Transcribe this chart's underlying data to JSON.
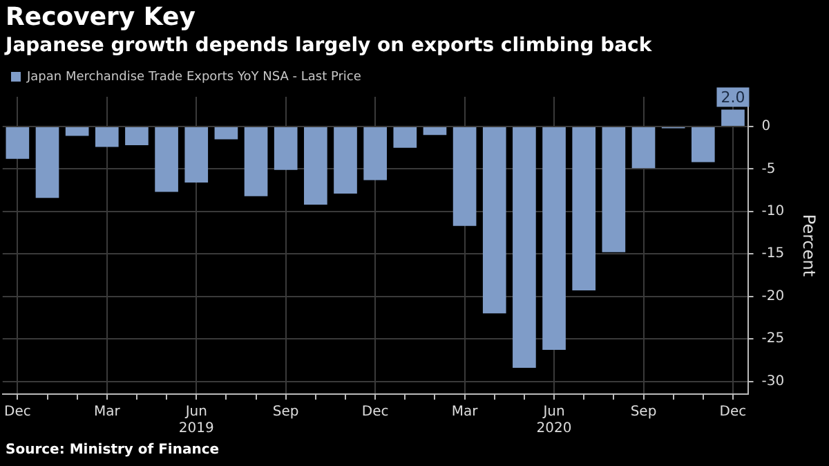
{
  "chart_data": {
    "type": "bar",
    "title": "Recovery Key",
    "subtitle": "Japanese growth depends largely on exports climbing back",
    "ylabel": "Percent",
    "categories": [
      "Dec",
      null,
      null,
      "Mar",
      null,
      null,
      "Jun\n2019",
      null,
      null,
      "Sep",
      null,
      null,
      "Dec",
      null,
      null,
      "Mar",
      null,
      null,
      "Jun\n2020",
      null,
      null,
      "Sep",
      null,
      null,
      "Dec"
    ],
    "series": [
      {
        "name": "Japan Merchandise Trade Exports YoY NSA - Last Price",
        "color": "#7f9cc8",
        "values": [
          -3.8,
          -8.4,
          -1.1,
          -2.4,
          -2.2,
          -7.7,
          -6.6,
          -1.5,
          -8.2,
          -5.1,
          -9.2,
          -7.9,
          -6.3,
          -2.5,
          -1.0,
          -11.7,
          -22.0,
          -28.4,
          -26.3,
          -19.3,
          -14.8,
          -4.9,
          -0.2,
          -4.2,
          2.0
        ],
        "value_labels": [
          null,
          null,
          null,
          null,
          null,
          null,
          null,
          null,
          null,
          null,
          null,
          null,
          null,
          null,
          null,
          null,
          null,
          null,
          null,
          null,
          null,
          null,
          null,
          null,
          "2.0"
        ]
      }
    ],
    "ylim": [
      -31.5,
      3.5
    ],
    "yticks": [
      -30,
      -25,
      -20,
      -15,
      -10,
      -5,
      0
    ],
    "grid": true,
    "legend": "top left",
    "annotations": [
      "Source: Ministry of Finance"
    ]
  }
}
